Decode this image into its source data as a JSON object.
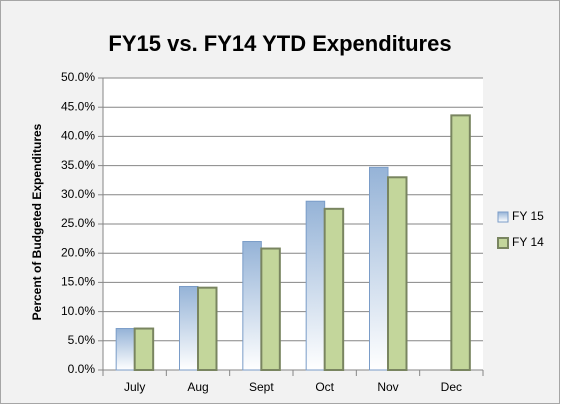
{
  "chart_data": {
    "type": "bar",
    "title": "FY15 vs. FY14 YTD Expenditures",
    "y_label": "Percent of Budgeted Expenditures",
    "categories": [
      "July",
      "Aug",
      "Sept",
      "Oct",
      "Nov",
      "Dec"
    ],
    "series": [
      {
        "name": "FY 15",
        "color": "#95b3d7",
        "values": [
          7.1,
          14.3,
          22.0,
          28.9,
          34.7,
          null
        ]
      },
      {
        "name": "FY 14",
        "color": "#c3d69b",
        "values": [
          7.1,
          14.1,
          20.8,
          27.6,
          33.0,
          43.6
        ]
      }
    ],
    "ylim": [
      0,
      50
    ],
    "yticks": [
      {
        "value": 0,
        "label": "0.0%"
      },
      {
        "value": 5,
        "label": "5.0%"
      },
      {
        "value": 10,
        "label": "10.0%"
      },
      {
        "value": 15,
        "label": "15.0%"
      },
      {
        "value": 20,
        "label": "20.0%"
      },
      {
        "value": 25,
        "label": "25.0%"
      },
      {
        "value": 30,
        "label": "30.0%"
      },
      {
        "value": 35,
        "label": "35.0%"
      },
      {
        "value": 40,
        "label": "40.0%"
      },
      {
        "value": 45,
        "label": "45.0%"
      },
      {
        "value": 50,
        "label": "50.0%"
      }
    ],
    "grid": true,
    "legend": "right"
  }
}
